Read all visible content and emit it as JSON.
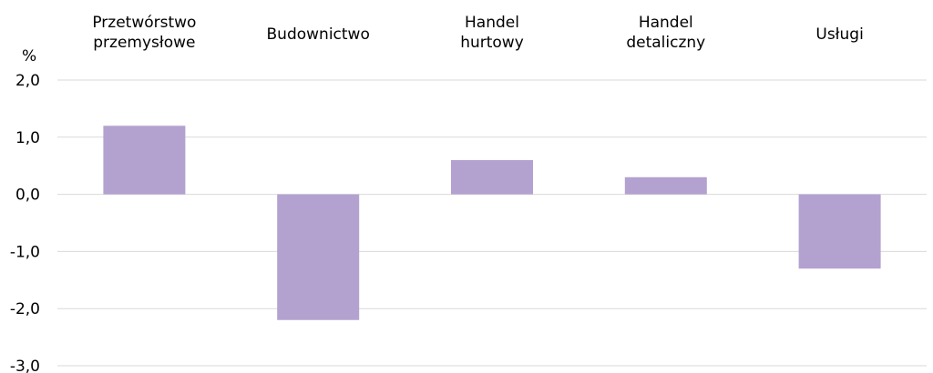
{
  "chart_data": {
    "type": "bar",
    "unit_label": "%",
    "categories": [
      [
        "Przetwórstwo",
        "przemysłowe"
      ],
      [
        "Budownictwo"
      ],
      [
        "Handel",
        "hurtowy"
      ],
      [
        "Handel",
        "detaliczny"
      ],
      [
        "Usługi"
      ]
    ],
    "values": [
      1.2,
      -2.2,
      0.6,
      0.3,
      -1.3
    ],
    "ylim": [
      -3.0,
      2.0
    ],
    "yticks": [
      2.0,
      1.0,
      0.0,
      -1.0,
      -2.0,
      -3.0
    ],
    "ytick_labels": [
      "2,0",
      "1,0",
      "0,0",
      "-1,0",
      "-2,0",
      "-3,0"
    ],
    "bar_color": "#b3a2cf",
    "grid": true,
    "legend": "none"
  }
}
